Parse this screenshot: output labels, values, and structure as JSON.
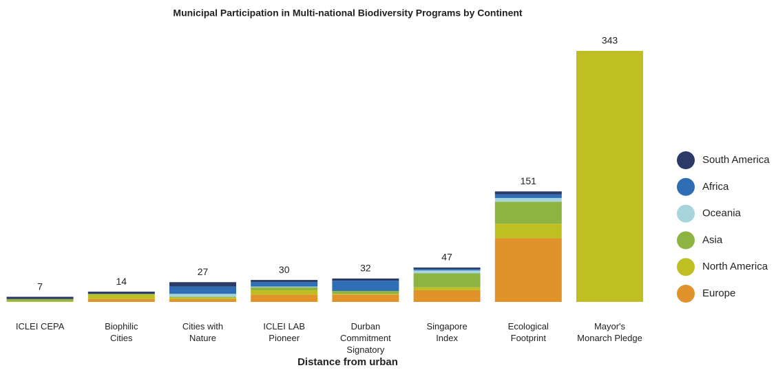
{
  "chart_data": {
    "type": "bar",
    "stacked": true,
    "title": "Municipal Participation in Multi-national Biodiversity Programs by Continent",
    "xlabel": "Distance from urban",
    "categories": [
      "ICLEI CEPA",
      "Biophilic\nCities",
      "Cities with\nNature",
      "ICLEI LAB\nPioneer",
      "Durban\nCommitment Signatory",
      "Singapore\nIndex",
      "Ecological\nFootprint",
      "Mayor's\nMonarch Pledge"
    ],
    "totals": [
      7,
      14,
      27,
      30,
      32,
      47,
      151,
      343
    ],
    "series": [
      {
        "name": "Europe",
        "color": "#e0922b",
        "values": [
          0,
          4,
          4,
          10,
          10,
          16,
          87,
          0
        ]
      },
      {
        "name": "North America",
        "color": "#bfbf24",
        "values": [
          1,
          6,
          2,
          6,
          1,
          4,
          20,
          343
        ]
      },
      {
        "name": "Asia",
        "color": "#8db443",
        "values": [
          3,
          1,
          1,
          4,
          4,
          19,
          30,
          0
        ]
      },
      {
        "name": "Oceania",
        "color": "#a8d5dc",
        "values": [
          0,
          0,
          4,
          1,
          0,
          4,
          5,
          0
        ]
      },
      {
        "name": "Africa",
        "color": "#2f6db5",
        "values": [
          0,
          0,
          10,
          6,
          14,
          2,
          5,
          0
        ]
      },
      {
        "name": "South America",
        "color": "#2b3a67",
        "values": [
          3,
          3,
          6,
          3,
          3,
          2,
          4,
          0
        ]
      }
    ],
    "ylim": [
      0,
      343
    ],
    "legend": "right"
  }
}
